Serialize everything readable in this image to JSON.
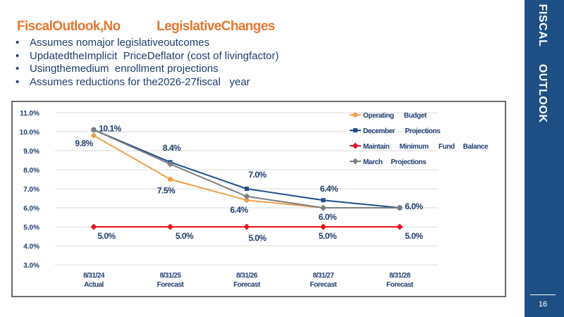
{
  "slide": {
    "title": "FiscalOutlook,No           LegislativeChanges",
    "bullets": [
      "Assumes nomajor legislativeoutcomes",
      "UpdatedtheImplicit  PriceDeflator (cost of livingfactor)",
      "Usingthemedium  enrollment projections",
      "Assumes reductions for the2026-27fiscal   year"
    ],
    "side_label": "FISCAL     OUTLOOK",
    "page_number": "16"
  },
  "chart_data": {
    "type": "line",
    "categories": [
      [
        "8/31/24",
        "Actual"
      ],
      [
        "8/31/25",
        "Forecast"
      ],
      [
        "8/31/26",
        "Forecast"
      ],
      [
        "8/31/27",
        "Forecast"
      ],
      [
        "8/31/28",
        "Forecast"
      ]
    ],
    "ylim": [
      3.0,
      11.0
    ],
    "yticks": [
      "3.0%",
      "4.0%",
      "5.0%",
      "6.0%",
      "7.0%",
      "8.0%",
      "9.0%",
      "10.0%",
      "11.0%"
    ],
    "grid": true,
    "legend_position": "top-right",
    "series": [
      {
        "name": "Operating      Budget",
        "color": "#F0A04B",
        "marker": "circle",
        "values": [
          9.8,
          7.5,
          6.4,
          6.0,
          6.0
        ],
        "labels": [
          "9.8%",
          "7.5%",
          "6.4%",
          "6.0%",
          ""
        ]
      },
      {
        "name": "December      Projections",
        "color": "#1F4E8C",
        "marker": "square",
        "values": [
          10.1,
          8.4,
          7.0,
          6.4,
          6.0
        ],
        "labels": [
          "10.1%",
          "8.4%",
          "7.0%",
          "6.4%",
          "6.0%"
        ]
      },
      {
        "name": "Maintain      Minimum      Fund     Balance",
        "color": "#E8141B",
        "marker": "diamond",
        "values": [
          5.0,
          5.0,
          5.0,
          5.0,
          5.0
        ],
        "labels": [
          "5.0%",
          "5.0%",
          "5.0%",
          "5.0%",
          "5.0%"
        ]
      },
      {
        "name": "March     Projections",
        "color": "#7F7F7F",
        "marker": "diamond",
        "values": [
          10.1,
          8.3,
          6.6,
          6.0,
          6.0
        ],
        "labels": [
          "",
          "",
          "",
          "",
          ""
        ]
      }
    ]
  }
}
